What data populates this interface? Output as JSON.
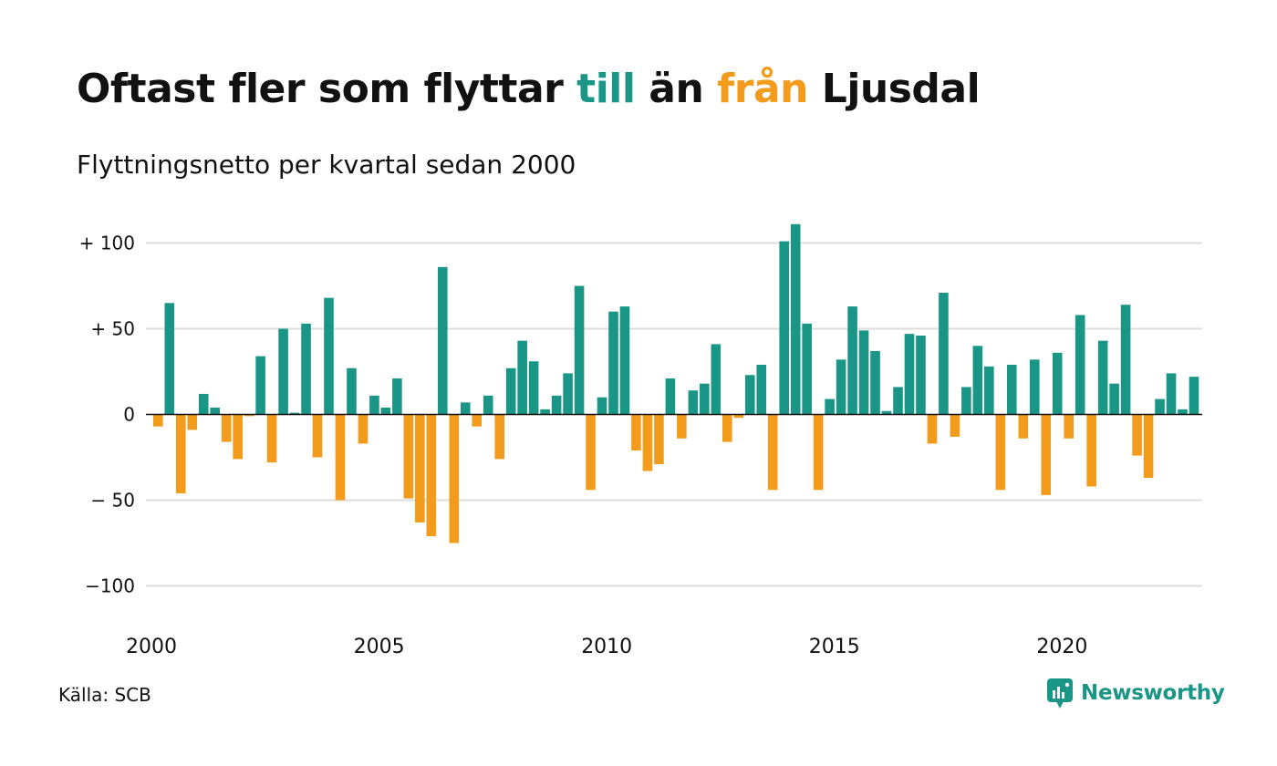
{
  "title": {
    "part1": "Oftast fler som flyttar ",
    "till": "till",
    "part2": " än ",
    "fran": "från",
    "part3": " Ljusdal"
  },
  "subtitle": "Flyttningsnetto per kvartal sedan 2000",
  "source": "Källa: SCB",
  "brand": {
    "name": "Newsworthy",
    "icon": "newsworthy-logo-icon"
  },
  "colors": {
    "positive": "#1a9687",
    "negative": "#f39c1b",
    "grid": "#dddddd",
    "zero": "#111111"
  },
  "chart_data": {
    "type": "bar",
    "start_year": 2000,
    "ylim": [
      -115,
      115
    ],
    "yticks": [
      100,
      50,
      0,
      -50,
      -100
    ],
    "ytick_labels": [
      "+ 100",
      "+  50",
      "0",
      "− 50",
      "−100"
    ],
    "xticks": [
      2000,
      2005,
      2010,
      2015,
      2020
    ],
    "xtick_labels": [
      "2000",
      "2005",
      "2010",
      "2015",
      "2020"
    ],
    "grid": true,
    "values": [
      -7,
      65,
      -46,
      -9,
      12,
      4,
      -16,
      -26,
      -1,
      34,
      -28,
      50,
      1,
      53,
      -25,
      68,
      -50,
      27,
      -17,
      11,
      4,
      21,
      -49,
      -63,
      -71,
      86,
      -75,
      7,
      -7,
      11,
      -26,
      27,
      43,
      31,
      3,
      11,
      24,
      75,
      -44,
      10,
      60,
      63,
      -21,
      -33,
      -29,
      21,
      -14,
      14,
      18,
      41,
      -16,
      -2,
      23,
      29,
      -44,
      101,
      111,
      53,
      -44,
      9,
      32,
      63,
      49,
      37,
      2,
      16,
      47,
      46,
      -17,
      71,
      -13,
      16,
      40,
      28,
      -44,
      29,
      -14,
      32,
      -47,
      36,
      -14,
      58,
      -42,
      43,
      18,
      64,
      -24,
      -37,
      9,
      24,
      3,
      22
    ]
  }
}
